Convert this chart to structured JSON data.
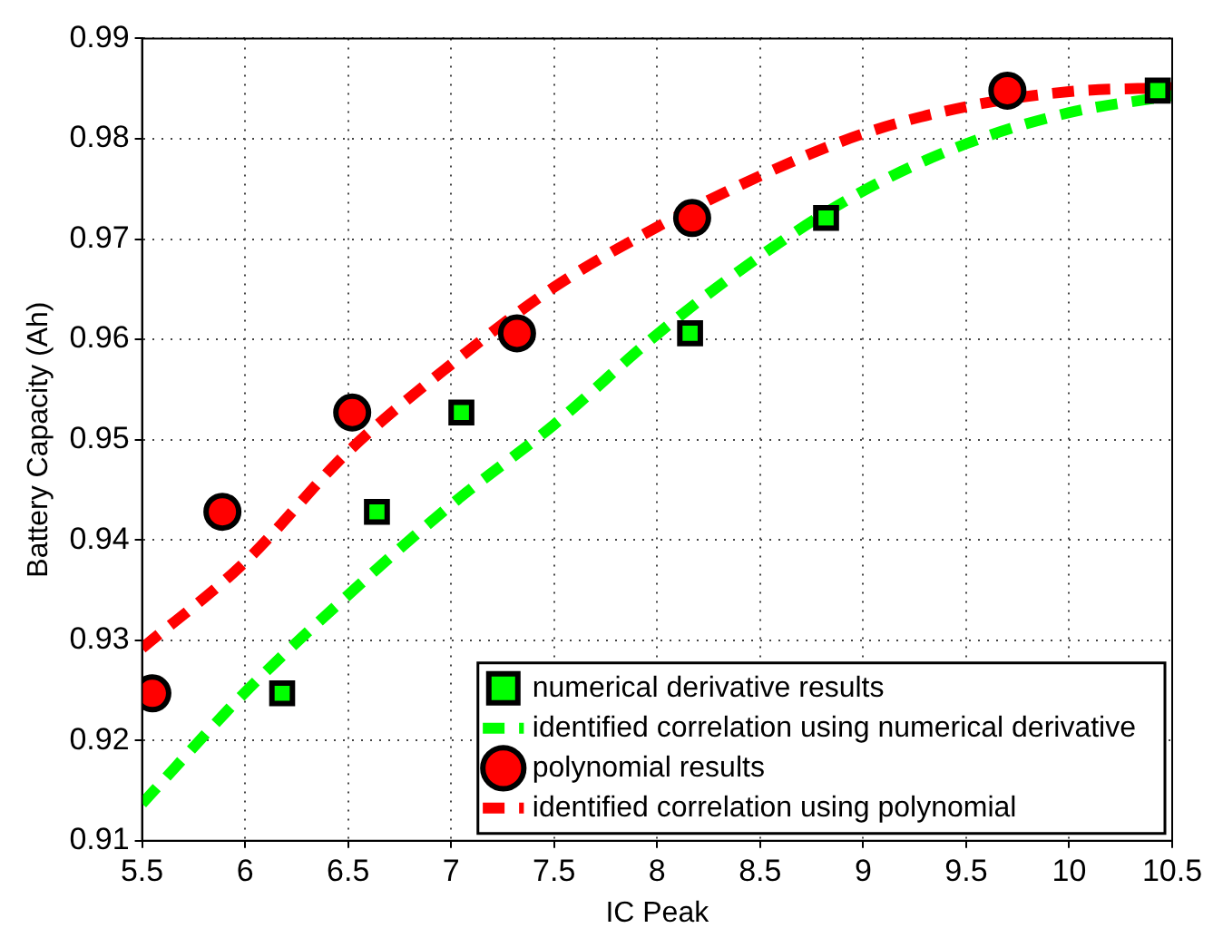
{
  "chart_data": {
    "type": "scatter",
    "xlabel": "IC Peak",
    "ylabel": "Battery Capacity (Ah)",
    "xlim": [
      5.5,
      10.5
    ],
    "xticks": [
      5.5,
      6,
      6.5,
      7,
      7.5,
      8,
      8.5,
      9,
      9.5,
      10,
      10.5
    ],
    "ylim": [
      0.91,
      0.99
    ],
    "yticks": [
      0.91,
      0.92,
      0.93,
      0.94,
      0.95,
      0.96,
      0.97,
      0.98,
      0.99
    ],
    "grid": true,
    "legend": "bottom right",
    "series": [
      {
        "name": "numerical derivative results",
        "marker": "square",
        "color": "#00ff00",
        "x": [
          6.18,
          6.64,
          7.05,
          8.16,
          8.82,
          10.43
        ],
        "values": [
          0.9247,
          0.9428,
          0.9527,
          0.9606,
          0.9721,
          0.9848
        ]
      },
      {
        "name": "identified correlation using numerical derivative",
        "type": "line",
        "marker": "none",
        "line_style": "dashed",
        "color": "#00ff00",
        "x": [
          5.5,
          6,
          6.5,
          7,
          7.5,
          8,
          8.5,
          9,
          9.5,
          10,
          10.5
        ],
        "values": [
          0.9137,
          0.9248,
          0.9345,
          0.9435,
          0.9515,
          0.9605,
          0.9683,
          0.9748,
          0.9795,
          0.9826,
          0.9843
        ]
      },
      {
        "name": "polynomial results",
        "marker": "circle",
        "color": "#ff0000",
        "x": [
          5.55,
          5.89,
          6.52,
          7.32,
          8.17,
          9.7
        ],
        "values": [
          0.9247,
          0.9428,
          0.9527,
          0.9606,
          0.9721,
          0.9848
        ]
      },
      {
        "name": "identified correlation using polynomial",
        "type": "line",
        "marker": "none",
        "line_style": "dashed",
        "color": "#ff0000",
        "x": [
          5.5,
          6,
          6.5,
          7,
          7.5,
          8,
          8.5,
          9,
          9.5,
          10,
          10.5
        ],
        "values": [
          0.9292,
          0.9378,
          0.9488,
          0.9575,
          0.9652,
          0.9712,
          0.9763,
          0.9805,
          0.9832,
          0.9847,
          0.9851
        ]
      }
    ]
  }
}
